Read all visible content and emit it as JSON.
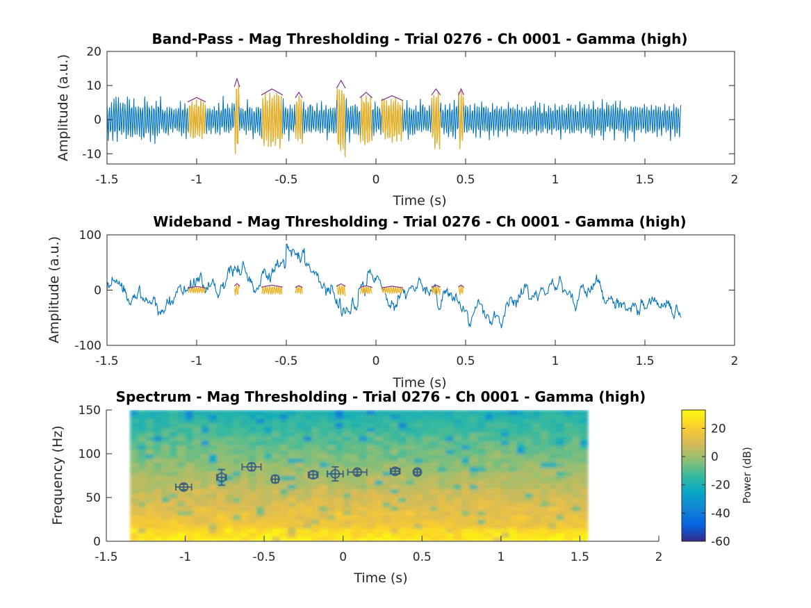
{
  "figure": {
    "background": "#ffffff"
  },
  "chart_data": [
    {
      "type": "line",
      "title": "Band-Pass - Mag Thresholding - Trial 0276 - Ch 0001 - Gamma (high)",
      "xlabel": "Time (s)",
      "ylabel": "Amplitude (a.u.)",
      "xlim": [
        -1.5,
        2
      ],
      "ylim": [
        -13,
        20
      ],
      "xticks": [
        "-1.5",
        "-1",
        "-0.5",
        "0",
        "0.5",
        "1",
        "1.5",
        "2"
      ],
      "yticks": [
        "-10",
        "0",
        "10",
        "20"
      ],
      "signal_range_s": [
        -1.5,
        1.7
      ],
      "signal_color": "#0072BD",
      "highlight_color": "#EDB120",
      "envelope_color": "#7E2F8E",
      "bursts": [
        {
          "start": -1.05,
          "end": -0.95,
          "amp": 6.5
        },
        {
          "start": -0.79,
          "end": -0.76,
          "amp": 12
        },
        {
          "start": -0.64,
          "end": -0.52,
          "amp": 9
        },
        {
          "start": -0.45,
          "end": -0.41,
          "amp": 8
        },
        {
          "start": -0.22,
          "end": -0.17,
          "amp": 11.5
        },
        {
          "start": -0.09,
          "end": -0.02,
          "amp": 8
        },
        {
          "start": 0.03,
          "end": 0.15,
          "amp": 7
        },
        {
          "start": 0.31,
          "end": 0.36,
          "amp": 9
        },
        {
          "start": 0.46,
          "end": 0.49,
          "amp": 9
        }
      ]
    },
    {
      "type": "line",
      "title": "Wideband - Mag Thresholding - Trial 0276 - Ch 0001 - Gamma (high)",
      "xlabel": "Time (s)",
      "ylabel": "Amplitude (a.u.)",
      "xlim": [
        -1.5,
        2
      ],
      "ylim": [
        -100,
        100
      ],
      "xticks": [
        "-1.5",
        "-1",
        "-0.5",
        "0",
        "0.5",
        "1",
        "1.5",
        "2"
      ],
      "yticks": [
        "-100",
        "0",
        "100"
      ],
      "signal_range_s": [
        -1.5,
        1.7
      ],
      "signal_color": "#0072BD",
      "highlight_color": "#EDB120",
      "envelope_color": "#7E2F8E"
    },
    {
      "type": "heatmap",
      "title": "Spectrum - Mag Thresholding - Trial 0276 - Ch 0001 - Gamma (high)",
      "xlabel": "Time (s)",
      "ylabel": "Frequency (Hz)",
      "xlim": [
        -1.5,
        2
      ],
      "ylim": [
        0,
        150
      ],
      "xticks": [
        "-1.5",
        "-1",
        "-0.5",
        "0",
        "0.5",
        "1",
        "1.5",
        "2"
      ],
      "yticks": [
        "0",
        "50",
        "100",
        "150"
      ],
      "data_x_range_s": [
        -1.35,
        1.55
      ],
      "colorbar": {
        "label": "Power (dB)",
        "range": [
          -60,
          33
        ],
        "ticks": [
          "20",
          "0",
          "-20",
          "-40",
          "-60"
        ],
        "tick_values": [
          20,
          0,
          -20,
          -40,
          -60
        ]
      },
      "markers": [
        {
          "t": -1.01,
          "f": 62,
          "terr": 0.05,
          "ferr": 3
        },
        {
          "t": -0.77,
          "f": 73,
          "terr": 0.03,
          "ferr": 9
        },
        {
          "t": -0.58,
          "f": 85,
          "terr": 0.06,
          "ferr": 4
        },
        {
          "t": -0.43,
          "f": 71,
          "terr": 0.02,
          "ferr": 4
        },
        {
          "t": -0.19,
          "f": 76,
          "terr": 0.03,
          "ferr": 4
        },
        {
          "t": -0.05,
          "f": 77,
          "terr": 0.05,
          "ferr": 8
        },
        {
          "t": 0.09,
          "f": 79,
          "terr": 0.06,
          "ferr": 3
        },
        {
          "t": 0.33,
          "f": 80,
          "terr": 0.03,
          "ferr": 3
        },
        {
          "t": 0.47,
          "f": 79,
          "terr": 0.02,
          "ferr": 3
        }
      ],
      "marker_color": "#3B5F80"
    }
  ]
}
